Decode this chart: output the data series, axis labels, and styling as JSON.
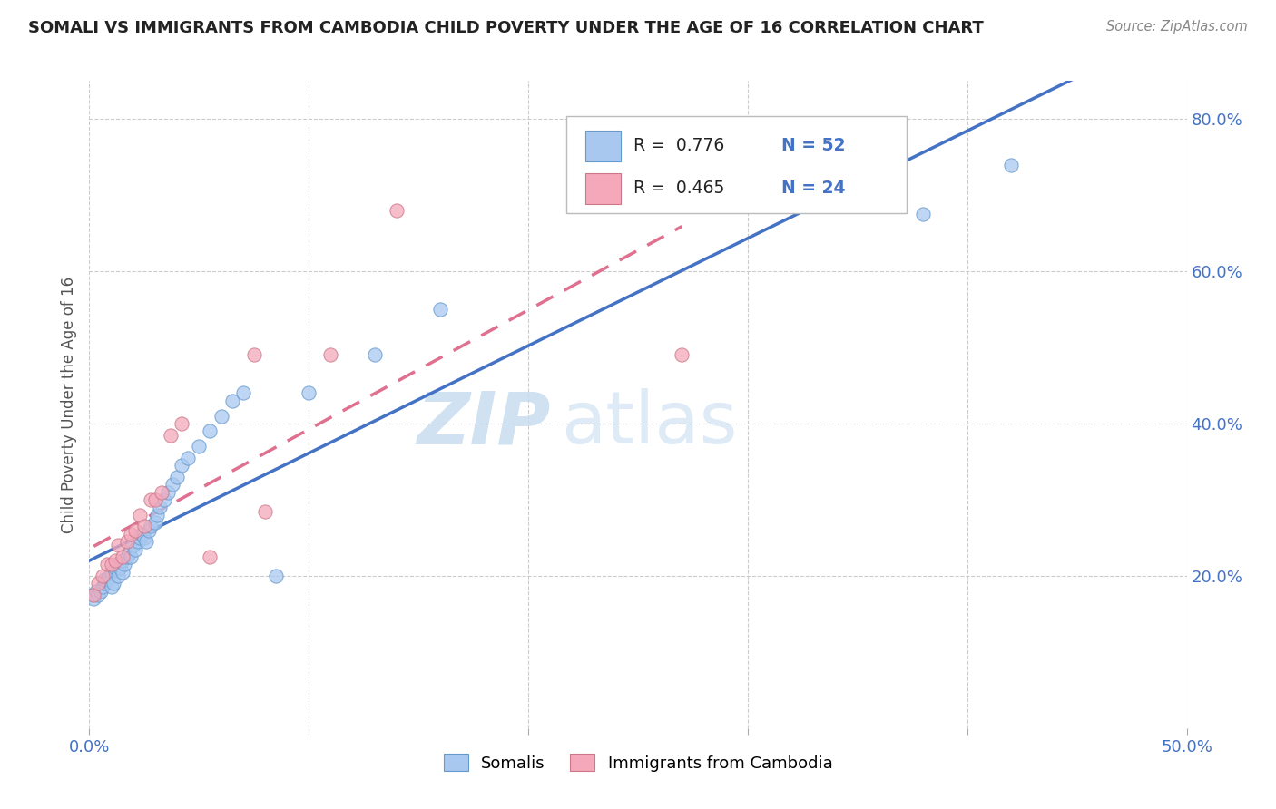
{
  "title": "SOMALI VS IMMIGRANTS FROM CAMBODIA CHILD POVERTY UNDER THE AGE OF 16 CORRELATION CHART",
  "source": "Source: ZipAtlas.com",
  "ylabel": "Child Poverty Under the Age of 16",
  "xlim": [
    0.0,
    0.5
  ],
  "ylim": [
    0.0,
    0.85
  ],
  "xticks": [
    0.0,
    0.1,
    0.2,
    0.3,
    0.4,
    0.5
  ],
  "xtick_labels": [
    "0.0%",
    "",
    "",
    "",
    "",
    "50.0%"
  ],
  "ytick_labels_right": [
    "20.0%",
    "40.0%",
    "60.0%",
    "80.0%"
  ],
  "yticks_right": [
    0.2,
    0.4,
    0.6,
    0.8
  ],
  "legend_somali": "Somalis",
  "legend_cambodia": "Immigrants from Cambodia",
  "R_somali": 0.776,
  "N_somali": 52,
  "R_cambodia": 0.465,
  "N_cambodia": 24,
  "somali_color": "#A8C8F0",
  "cambodia_color": "#F4A8BA",
  "somali_line_color": "#4472C4",
  "cambodia_line_color": "#E07090",
  "watermark_zip": "ZIP",
  "watermark_atlas": "atlas",
  "background_color": "#FFFFFF",
  "grid_color": "#CCCCCC",
  "somali_x": [
    0.001,
    0.002,
    0.003,
    0.004,
    0.005,
    0.006,
    0.007,
    0.007,
    0.008,
    0.009,
    0.01,
    0.01,
    0.011,
    0.012,
    0.013,
    0.013,
    0.014,
    0.015,
    0.015,
    0.016,
    0.017,
    0.018,
    0.019,
    0.02,
    0.021,
    0.022,
    0.023,
    0.024,
    0.025,
    0.026,
    0.027,
    0.028,
    0.03,
    0.031,
    0.032,
    0.034,
    0.036,
    0.038,
    0.04,
    0.042,
    0.045,
    0.05,
    0.055,
    0.06,
    0.065,
    0.07,
    0.085,
    0.1,
    0.13,
    0.16,
    0.38,
    0.42
  ],
  "somali_y": [
    0.175,
    0.17,
    0.18,
    0.175,
    0.18,
    0.185,
    0.19,
    0.195,
    0.195,
    0.2,
    0.205,
    0.185,
    0.19,
    0.21,
    0.215,
    0.2,
    0.21,
    0.205,
    0.22,
    0.215,
    0.225,
    0.23,
    0.225,
    0.24,
    0.235,
    0.245,
    0.25,
    0.255,
    0.25,
    0.245,
    0.26,
    0.265,
    0.27,
    0.28,
    0.29,
    0.3,
    0.31,
    0.32,
    0.33,
    0.345,
    0.355,
    0.37,
    0.39,
    0.41,
    0.43,
    0.44,
    0.2,
    0.44,
    0.49,
    0.55,
    0.675,
    0.74
  ],
  "cambodia_x": [
    0.002,
    0.004,
    0.006,
    0.008,
    0.01,
    0.012,
    0.013,
    0.015,
    0.017,
    0.019,
    0.021,
    0.023,
    0.025,
    0.028,
    0.03,
    0.033,
    0.037,
    0.042,
    0.055,
    0.075,
    0.08,
    0.11,
    0.14,
    0.27
  ],
  "cambodia_y": [
    0.175,
    0.19,
    0.2,
    0.215,
    0.215,
    0.22,
    0.24,
    0.225,
    0.245,
    0.255,
    0.26,
    0.28,
    0.265,
    0.3,
    0.3,
    0.31,
    0.385,
    0.4,
    0.225,
    0.49,
    0.285,
    0.49,
    0.68,
    0.49
  ]
}
